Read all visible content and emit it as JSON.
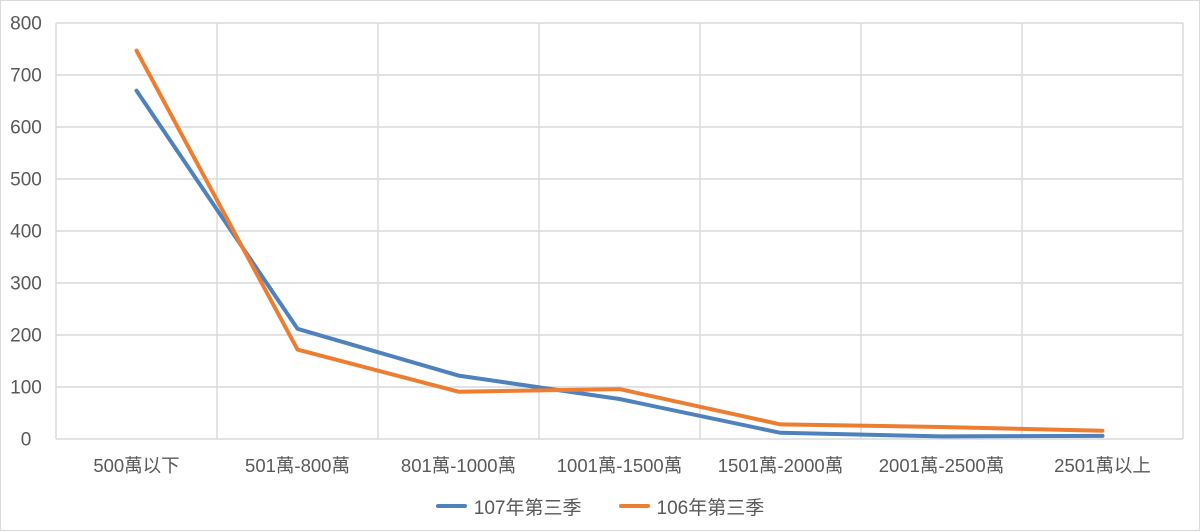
{
  "chart_data": {
    "type": "line",
    "title": "",
    "xlabel": "",
    "ylabel": "",
    "categories": [
      "500萬以下",
      "501萬-800萬",
      "801萬-1000萬",
      "1001萬-1500萬",
      "1501萬-2000萬",
      "2001萬-2500萬",
      "2501萬以上"
    ],
    "series": [
      {
        "name": "107年第三季",
        "color": "#4F81BD",
        "values": [
          670,
          212,
          122,
          77,
          12,
          5,
          6
        ]
      },
      {
        "name": "106年第三季",
        "color": "#ED7D31",
        "values": [
          747,
          172,
          91,
          96,
          28,
          23,
          16
        ]
      }
    ],
    "ylim": [
      0,
      800
    ],
    "ytick_step": 100,
    "yticks": [
      "0",
      "100",
      "200",
      "300",
      "400",
      "500",
      "600",
      "700",
      "800"
    ],
    "grid": true,
    "legend_position": "bottom",
    "styles": {
      "gridline_color": "#D9D9D9",
      "border_color": "#D9D9D9",
      "axis_label_color": "#595959",
      "background": "#FFFFFF"
    }
  }
}
